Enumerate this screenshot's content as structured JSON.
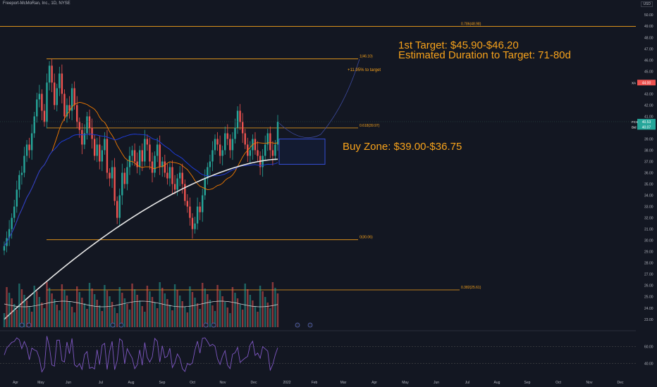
{
  "header": {
    "title": "Freeport-McMoRan, Inc., 1D, NYSE",
    "currency": "USD"
  },
  "annotations": {
    "target_line1": "1st Target: $45.90-$46.20",
    "target_line2": "Estimated Duration to Target: 71-80d",
    "buy_zone": "Buy Zone: $39.00-$36.75",
    "pct_to_target": "+11.95% to target"
  },
  "colors": {
    "background": "#131722",
    "up": "#26a69a",
    "down": "#ef5350",
    "fib": "#f7a21b",
    "ma_fast": "#f57c00",
    "ma_mid": "#1e3bd6",
    "ma_slow": "#e8e8e8",
    "rsi": "#7e57c2",
    "accent_text": "#f7a21b"
  },
  "chart_data": {
    "type": "candlestick",
    "symbol": "FCX",
    "exchange": "NYSE",
    "interval": "1D",
    "price_axis": {
      "ticks": [
        "50.00",
        "49.00",
        "48.00",
        "47.00",
        "46.00",
        "45.00",
        "44.00",
        "43.00",
        "42.00",
        "41.00",
        "40.00",
        "39.00",
        "38.00",
        "37.00",
        "36.00",
        "35.00",
        "34.00",
        "33.00",
        "32.00",
        "31.00",
        "30.00",
        "29.00",
        "28.00",
        "27.00",
        "26.00",
        "25.00",
        "24.00",
        "23.00"
      ],
      "range": [
        22.3,
        50.7
      ]
    },
    "x_axis": {
      "ticks": [
        "Apr",
        "May",
        "Jun",
        "Jul",
        "Aug",
        "Sep",
        "Oct",
        "Nov",
        "Dec",
        "2022",
        "Feb",
        "Mar",
        "Apr",
        "May",
        "Jun",
        "Jul",
        "Aug",
        "Sep",
        "Oct",
        "Nov",
        "Dec"
      ]
    },
    "fib_levels": [
      {
        "label": "0.786(48.98)",
        "value": 48.98
      },
      {
        "label": "1(46.10)",
        "value": 46.1
      },
      {
        "label": "0.618(39.97)",
        "value": 39.97
      },
      {
        "label": "0(30.06)",
        "value": 30.06
      },
      {
        "label": "0.382(25.61)",
        "value": 25.61
      }
    ],
    "price_badges": [
      {
        "label": "44.00",
        "value": 44.0,
        "color": "#ef5350",
        "tag": "XA"
      },
      {
        "label": "40.53",
        "value": 40.53,
        "color": "#26a69a",
        "tag": "FCX"
      },
      {
        "label": "40.07",
        "value": 40.07,
        "color": "#26a69a",
        "tag": "Bid"
      }
    ],
    "buy_zone": {
      "high": 39.0,
      "low": 36.75
    },
    "target": {
      "low": 45.9,
      "high": 46.2
    },
    "ohlc_path_close": [
      29.5,
      30.2,
      31.0,
      32.0,
      33.0,
      34.5,
      35.8,
      36.0,
      37.5,
      38.5,
      38.0,
      39.5,
      41.0,
      42.5,
      43.0,
      41.5,
      40.5,
      44.0,
      45.5,
      44.0,
      42.0,
      43.5,
      44.8,
      43.0,
      41.0,
      42.0,
      41.5,
      43.5,
      42.0,
      40.5,
      39.8,
      38.5,
      39.5,
      41.0,
      40.0,
      39.0,
      37.5,
      38.5,
      37.0,
      38.0,
      39.0,
      36.0,
      35.5,
      36.5,
      33.5,
      32.0,
      34.0,
      36.0,
      35.0,
      36.5,
      37.5,
      38.0,
      37.0,
      36.5,
      38.0,
      37.0,
      39.0,
      38.5,
      37.0,
      36.0,
      37.5,
      38.5,
      36.5,
      37.0,
      36.0,
      35.5,
      36.5,
      35.0,
      34.5,
      35.5,
      36.0,
      35.0,
      33.5,
      33.0,
      32.0,
      31.0,
      31.5,
      33.0,
      32.5,
      34.0,
      35.5,
      36.5,
      37.0,
      38.0,
      39.0,
      38.5,
      37.5,
      38.0,
      39.5,
      39.0,
      38.0,
      39.0,
      40.0,
      41.5,
      40.5,
      39.5,
      38.5,
      37.5,
      38.0,
      39.0,
      38.0,
      37.5,
      36.5,
      37.5,
      38.5,
      39.5,
      38.0,
      37.5,
      38.5,
      40.53
    ],
    "rsi": {
      "ticks": [
        "60.00",
        "40.00"
      ],
      "range": [
        25,
        75
      ]
    }
  }
}
